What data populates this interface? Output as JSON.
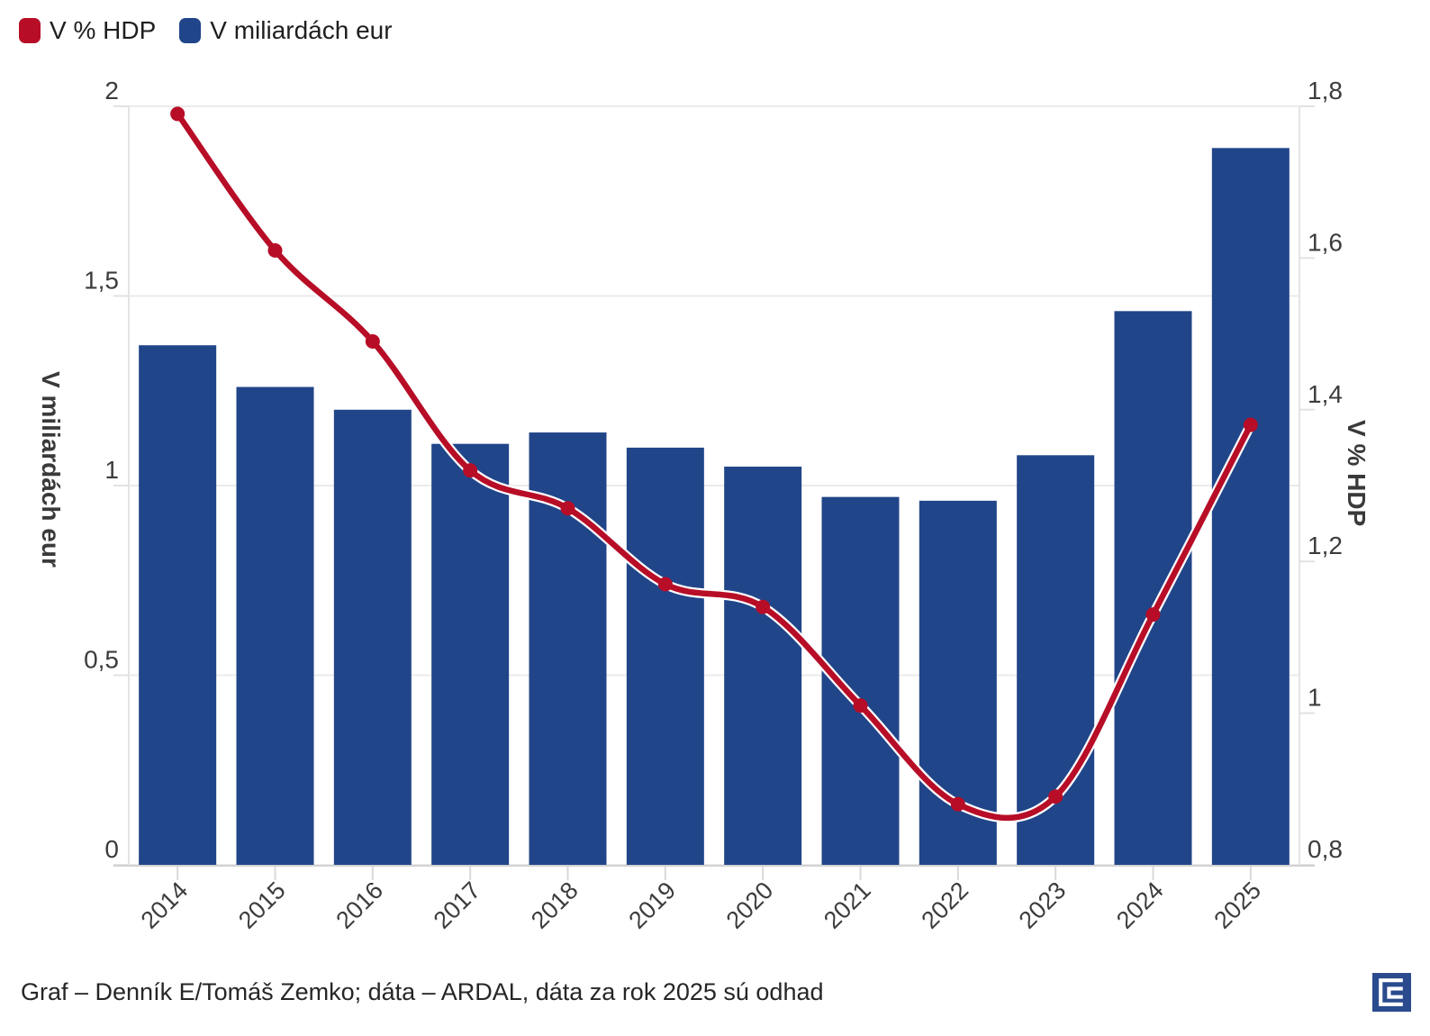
{
  "legend": [
    {
      "label": "V % HDP",
      "color": "#B70D27"
    },
    {
      "label": "V miliardách eur",
      "color": "#214589"
    }
  ],
  "chart_data": {
    "type": "bar+line",
    "categories": [
      "2014",
      "2015",
      "2016",
      "2017",
      "2018",
      "2019",
      "2020",
      "2021",
      "2022",
      "2023",
      "2024",
      "2025"
    ],
    "series": [
      {
        "name": "V miliardách eur",
        "type": "bar",
        "axis": "left",
        "color": "#214589",
        "values": [
          1.37,
          1.26,
          1.2,
          1.11,
          1.14,
          1.1,
          1.05,
          0.97,
          0.96,
          1.08,
          1.46,
          1.89
        ]
      },
      {
        "name": "V % HDP",
        "type": "line",
        "axis": "right",
        "color": "#B70D27",
        "values": [
          1.79,
          1.61,
          1.49,
          1.32,
          1.27,
          1.17,
          1.14,
          1.01,
          0.88,
          0.89,
          1.13,
          1.38
        ]
      }
    ],
    "axes": {
      "left": {
        "title": "V miliardách eur",
        "min": 0,
        "max": 2,
        "ticks": [
          {
            "v": 0,
            "label": "0"
          },
          {
            "v": 0.5,
            "label": "0,5"
          },
          {
            "v": 1,
            "label": "1"
          },
          {
            "v": 1.5,
            "label": "1,5"
          },
          {
            "v": 2,
            "label": "2"
          }
        ]
      },
      "right": {
        "title": "V % HDP",
        "min": 0.8,
        "max": 1.8,
        "ticks": [
          {
            "v": 0.8,
            "label": "0,8"
          },
          {
            "v": 1,
            "label": "1"
          },
          {
            "v": 1.2,
            "label": "1,2"
          },
          {
            "v": 1.4,
            "label": "1,4"
          },
          {
            "v": 1.6,
            "label": "1,6"
          },
          {
            "v": 1.8,
            "label": "1,8"
          }
        ]
      }
    },
    "grid": true,
    "legend_position": "top-left",
    "colors": {
      "grid": "#ebebeb",
      "axis_line": "#d2d2d2",
      "tick_text": "#3c3c3c",
      "line_casing": "#ffffff"
    }
  },
  "footer": {
    "credit": "Graf – Denník E/Tomáš Zemko; dáta – ARDAL, dáta za rok 2025 sú odhad",
    "logo": "dennik-e-logo"
  }
}
